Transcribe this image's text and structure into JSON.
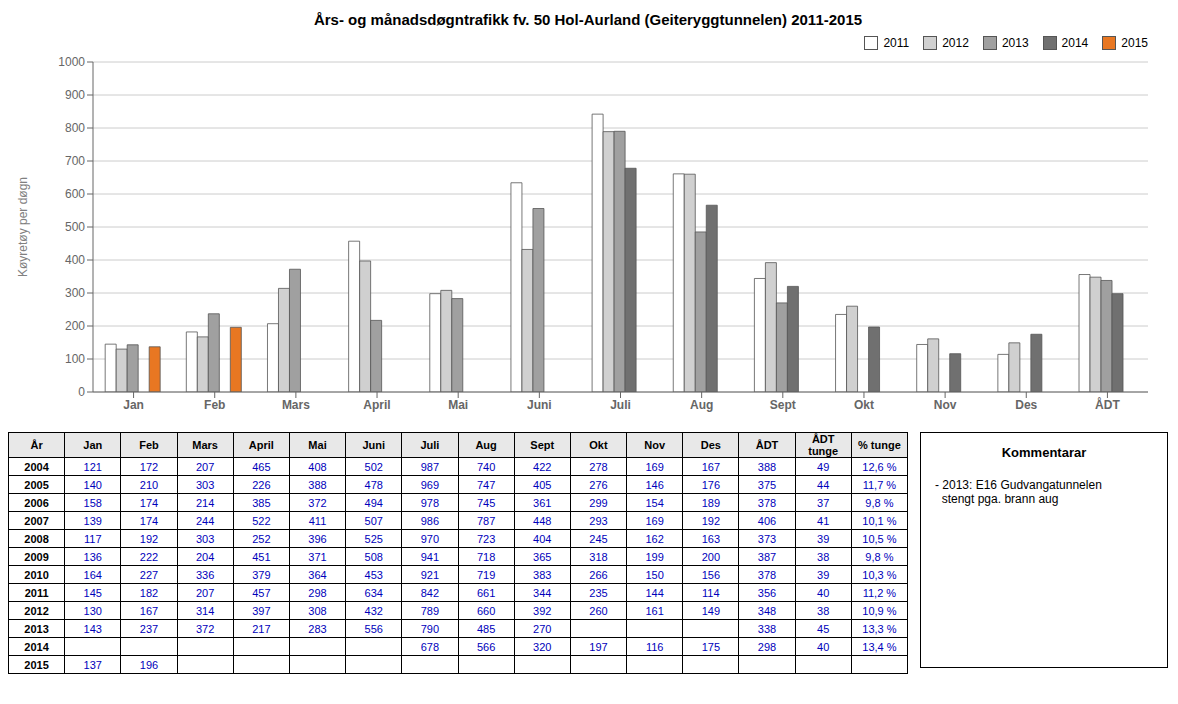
{
  "chart_data": {
    "type": "bar",
    "title": "Års- og månadsdøgntrafikk fv. 50 Hol-Aurland (Geiteryggtunnelen) 2011-2015",
    "ylabel": "Køyretøy per døgn",
    "categories": [
      "Jan",
      "Feb",
      "Mars",
      "April",
      "Mai",
      "Juni",
      "Juli",
      "Aug",
      "Sept",
      "Okt",
      "Nov",
      "Des",
      "ÅDT"
    ],
    "series": [
      {
        "name": "2011",
        "color": "#FFFFFF",
        "values": [
          145,
          182,
          207,
          457,
          298,
          634,
          842,
          661,
          344,
          235,
          144,
          114,
          356
        ]
      },
      {
        "name": "2012",
        "color": "#D0D0D0",
        "values": [
          130,
          167,
          314,
          397,
          308,
          432,
          789,
          660,
          392,
          260,
          161,
          149,
          348
        ]
      },
      {
        "name": "2013",
        "color": "#A0A0A0",
        "values": [
          143,
          237,
          372,
          217,
          283,
          556,
          790,
          485,
          270,
          null,
          null,
          null,
          338
        ]
      },
      {
        "name": "2014",
        "color": "#707070",
        "values": [
          null,
          null,
          null,
          null,
          null,
          null,
          678,
          566,
          320,
          197,
          116,
          175,
          298
        ]
      },
      {
        "name": "2015",
        "color": "#E87722",
        "values": [
          137,
          196,
          null,
          null,
          null,
          null,
          null,
          null,
          null,
          null,
          null,
          null,
          null
        ]
      }
    ],
    "ylim": [
      0,
      1000
    ],
    "yticks": [
      0,
      100,
      200,
      300,
      400,
      500,
      600,
      700,
      800,
      900,
      1000
    ],
    "grid": true,
    "legend": "upper right",
    "table": {
      "headers": [
        "År",
        "Jan",
        "Feb",
        "Mars",
        "April",
        "Mai",
        "Juni",
        "Juli",
        "Aug",
        "Sept",
        "Okt",
        "Nov",
        "Des",
        "ÅDT",
        "ÅDT tunge",
        "% tunge"
      ],
      "rows": [
        [
          "2004",
          "121",
          "172",
          "207",
          "465",
          "408",
          "502",
          "987",
          "740",
          "422",
          "278",
          "169",
          "167",
          "388",
          "49",
          "12,6 %"
        ],
        [
          "2005",
          "140",
          "210",
          "303",
          "226",
          "388",
          "478",
          "969",
          "747",
          "405",
          "276",
          "146",
          "176",
          "375",
          "44",
          "11,7 %"
        ],
        [
          "2006",
          "158",
          "174",
          "214",
          "385",
          "372",
          "494",
          "978",
          "745",
          "361",
          "299",
          "154",
          "189",
          "378",
          "37",
          "9,8 %"
        ],
        [
          "2007",
          "139",
          "174",
          "244",
          "522",
          "411",
          "507",
          "986",
          "787",
          "448",
          "293",
          "169",
          "192",
          "406",
          "41",
          "10,1 %"
        ],
        [
          "2008",
          "117",
          "192",
          "303",
          "252",
          "396",
          "525",
          "970",
          "723",
          "404",
          "245",
          "162",
          "163",
          "373",
          "39",
          "10,5 %"
        ],
        [
          "2009",
          "136",
          "222",
          "204",
          "451",
          "371",
          "508",
          "941",
          "718",
          "365",
          "318",
          "199",
          "200",
          "387",
          "38",
          "9,8 %"
        ],
        [
          "2010",
          "164",
          "227",
          "336",
          "379",
          "364",
          "453",
          "921",
          "719",
          "383",
          "266",
          "150",
          "156",
          "378",
          "39",
          "10,3 %"
        ],
        [
          "2011",
          "145",
          "182",
          "207",
          "457",
          "298",
          "634",
          "842",
          "661",
          "344",
          "235",
          "144",
          "114",
          "356",
          "40",
          "11,2 %"
        ],
        [
          "2012",
          "130",
          "167",
          "314",
          "397",
          "308",
          "432",
          "789",
          "660",
          "392",
          "260",
          "161",
          "149",
          "348",
          "38",
          "10,9 %"
        ],
        [
          "2013",
          "143",
          "237",
          "372",
          "217",
          "283",
          "556",
          "790",
          "485",
          "270",
          null,
          null,
          null,
          "338",
          "45",
          "13,3 %"
        ],
        [
          "2014",
          null,
          null,
          null,
          null,
          null,
          null,
          "678",
          "566",
          "320",
          "197",
          "116",
          "175",
          "298",
          "40",
          "13,4 %"
        ],
        [
          "2015",
          "137",
          "196",
          null,
          null,
          null,
          null,
          null,
          null,
          null,
          null,
          null,
          null,
          null,
          null,
          null
        ]
      ]
    },
    "comment_header": "Kommentarar",
    "comment_text": "- 2013: E16 Gudvangatunnelen\n  stengt pga. brann aug"
  }
}
